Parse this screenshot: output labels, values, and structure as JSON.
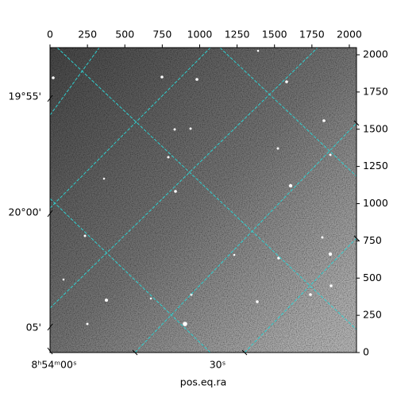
{
  "chart_data": {
    "type": "image",
    "xlabel": "pos.eq.ra",
    "xlim": [
      0,
      2048
    ],
    "xticks": [
      0,
      250,
      500,
      750,
      1000,
      1250,
      1500,
      1750,
      2000
    ],
    "ylim": [
      0,
      2048
    ],
    "yticks": [
      0,
      250,
      500,
      750,
      1000,
      1250,
      1500,
      1750,
      2000
    ],
    "world_x_labels": [
      "8ʰ54ᵐ00ˢ",
      "30ˢ"
    ],
    "world_y_labels": [
      "19°55'",
      "20°00'",
      "05'"
    ]
  }
}
